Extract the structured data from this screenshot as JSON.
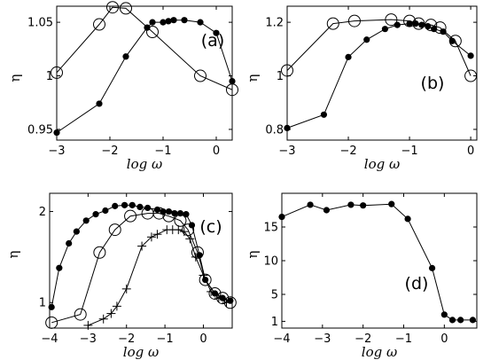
{
  "chart_data": [
    {
      "type": "line",
      "panel_label": "(a)",
      "xlabel": "log ω",
      "ylabel": "η",
      "xlim": [
        -3,
        0.3
      ],
      "ylim": [
        0.94,
        1.065
      ],
      "xticks": [
        -3,
        -2,
        -1,
        0
      ],
      "xtick_labels": [
        "−3",
        "−2",
        "−1",
        "0"
      ],
      "yticks": [
        0.95,
        1,
        1.05
      ],
      "ytick_labels": [
        "0.95",
        "1",
        "1.05"
      ],
      "series": [
        {
          "marker": "filled-circle",
          "x": [
            -3,
            -2.2,
            -1.7,
            -1.3,
            -1.2,
            -1.0,
            -0.9,
            -0.8,
            -0.6,
            -0.3,
            0.0,
            0.3
          ],
          "y": [
            0.947,
            0.974,
            1.018,
            1.045,
            1.05,
            1.05,
            1.051,
            1.052,
            1.052,
            1.05,
            1.04,
            0.995
          ]
        },
        {
          "marker": "open-circle",
          "x": [
            -3,
            -2.2,
            -1.95,
            -1.7,
            -1.2,
            -0.3,
            0.3
          ],
          "y": [
            1.003,
            1.048,
            1.064,
            1.063,
            1.041,
            1.0,
            0.987
          ]
        }
      ]
    },
    {
      "type": "line",
      "panel_label": "(b)",
      "xlabel": "log ω",
      "ylabel": "η",
      "xlim": [
        -3,
        0.1
      ],
      "ylim": [
        0.76,
        1.26
      ],
      "xticks": [
        -3,
        -2,
        -1,
        0
      ],
      "xtick_labels": [
        "−3",
        "−2",
        "−1",
        "0"
      ],
      "yticks": [
        0.8,
        1,
        1.2
      ],
      "ytick_labels": [
        "0.8",
        "1",
        "1.2"
      ],
      "series": [
        {
          "marker": "filled-circle",
          "x": [
            -3,
            -2.4,
            -2.0,
            -1.7,
            -1.4,
            -1.2,
            -1.0,
            -0.9,
            -0.8,
            -0.7,
            -0.6,
            -0.45,
            -0.3,
            0.0
          ],
          "y": [
            0.805,
            0.855,
            1.07,
            1.135,
            1.175,
            1.19,
            1.195,
            1.195,
            1.19,
            1.185,
            1.175,
            1.165,
            1.13,
            1.075
          ]
        },
        {
          "marker": "open-circle",
          "x": [
            -3,
            -2.25,
            -1.9,
            -1.3,
            -1.0,
            -0.85,
            -0.65,
            -0.5,
            -0.25,
            0.0
          ],
          "y": [
            1.02,
            1.195,
            1.205,
            1.21,
            1.205,
            1.195,
            1.19,
            1.18,
            1.13,
            1.0
          ]
        }
      ]
    },
    {
      "type": "line",
      "panel_label": "(c)",
      "xlabel": "log ω",
      "ylabel": "η",
      "xlim": [
        -4,
        0.75
      ],
      "ylim": [
        0.72,
        2.2
      ],
      "xticks": [
        -4,
        -3,
        -2,
        -1,
        0
      ],
      "xtick_labels": [
        "−4",
        "−3",
        "−2",
        "−1",
        "0"
      ],
      "yticks": [
        1,
        2
      ],
      "ytick_labels": [
        "1",
        "2"
      ],
      "series": [
        {
          "marker": "filled-circle",
          "x": [
            -3.95,
            -3.75,
            -3.5,
            -3.3,
            -3.05,
            -2.8,
            -2.55,
            -2.3,
            -2.05,
            -1.85,
            -1.65,
            -1.45,
            -1.2,
            -1.05,
            -0.9,
            -0.75,
            -0.6,
            -0.45,
            -0.3,
            -0.1,
            0.05,
            0.3,
            0.5,
            0.7
          ],
          "y": [
            0.95,
            1.38,
            1.65,
            1.78,
            1.9,
            1.97,
            2.01,
            2.06,
            2.07,
            2.07,
            2.05,
            2.04,
            2.02,
            2.0,
            2.0,
            1.98,
            1.98,
            1.97,
            1.85,
            1.52,
            1.25,
            1.1,
            1.05,
            1.02
          ]
        },
        {
          "marker": "open-circle",
          "x": [
            -3.95,
            -3.2,
            -2.7,
            -2.3,
            -1.9,
            -1.45,
            -1.15,
            -0.9,
            -0.6,
            -0.4,
            -0.15,
            0.05,
            0.3,
            0.5,
            0.7
          ],
          "y": [
            0.78,
            0.87,
            1.55,
            1.8,
            1.95,
            1.98,
            1.98,
            1.95,
            1.9,
            1.8,
            1.55,
            1.25,
            1.1,
            1.05,
            1.0
          ]
        },
        {
          "marker": "plus",
          "x": [
            -3.0,
            -2.6,
            -2.4,
            -2.25,
            -2.0,
            -1.6,
            -1.35,
            -1.2,
            -0.95,
            -0.8,
            -0.65,
            -0.5,
            -0.35,
            -0.2,
            0.0,
            0.2,
            0.4,
            0.6
          ],
          "y": [
            0.75,
            0.82,
            0.88,
            0.96,
            1.15,
            1.62,
            1.72,
            1.75,
            1.8,
            1.8,
            1.8,
            1.78,
            1.7,
            1.5,
            1.3,
            1.12,
            1.05,
            1.0
          ]
        }
      ]
    },
    {
      "type": "line",
      "panel_label": "(d)",
      "xlabel": "log ω",
      "ylabel": "η",
      "xlim": [
        -4,
        0.8
      ],
      "ylim": [
        0,
        20
      ],
      "xticks": [
        -4,
        -3,
        -2,
        -1,
        0
      ],
      "xtick_labels": [
        "−4",
        "−3",
        "−2",
        "−1",
        "0"
      ],
      "yticks": [
        1,
        5,
        10,
        15
      ],
      "ytick_labels": [
        "1",
        "5",
        "10",
        "15"
      ],
      "series": [
        {
          "marker": "filled-circle",
          "x": [
            -4,
            -3.3,
            -2.9,
            -2.3,
            -2.0,
            -1.3,
            -0.9,
            -0.3,
            0.0,
            0.2,
            0.4,
            0.7
          ],
          "y": [
            16.5,
            18.3,
            17.5,
            18.3,
            18.2,
            18.4,
            16.2,
            8.9,
            2.0,
            1.2,
            1.2,
            1.2
          ]
        }
      ]
    }
  ]
}
